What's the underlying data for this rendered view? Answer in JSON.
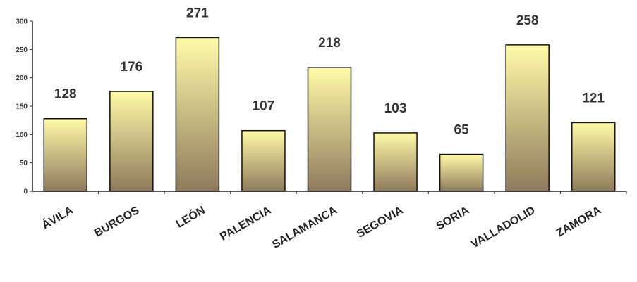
{
  "chart_data": {
    "type": "bar",
    "title": "",
    "xlabel": "",
    "ylabel": "",
    "categories": [
      "ÁVILA",
      "BURGOS",
      "LEÓN",
      "PALENCIA",
      "SALAMANCA",
      "SEGOVIA",
      "SORIA",
      "VALLADOLID",
      "ZAMORA"
    ],
    "values": [
      128,
      176,
      271,
      107,
      218,
      103,
      65,
      258,
      121
    ],
    "ylim": [
      0,
      300
    ],
    "yticks": [
      0,
      50,
      100,
      150,
      200,
      250,
      300
    ],
    "grid": false,
    "legend": "none",
    "data_labels": true,
    "colors": {
      "bar_top": "#FFFBA8",
      "bar_bottom": "#8F7A5C",
      "bar_stroke": "#111111",
      "axis": "#222222",
      "text": "#333333"
    }
  }
}
